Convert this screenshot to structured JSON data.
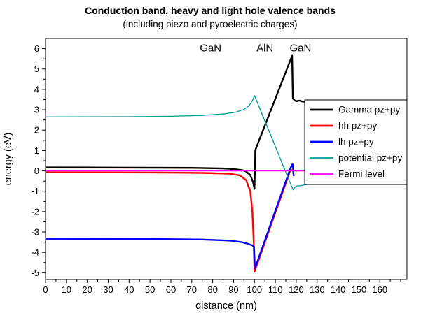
{
  "chart_data": {
    "type": "line",
    "title": "Conduction band, heavy and light hole valence bands",
    "subtitle": "(including piezo and pyroelectric charges)",
    "xlabel": "distance (nm)",
    "ylabel": "energy (eV)",
    "xlim": [
      0,
      173
    ],
    "ylim": [
      -5.33,
      6.5
    ],
    "xticks": [
      0,
      10,
      20,
      30,
      40,
      50,
      60,
      70,
      80,
      90,
      100,
      110,
      120,
      130,
      140,
      150,
      160
    ],
    "yticks": [
      -5,
      -4,
      -3,
      -2,
      -1,
      0,
      1,
      2,
      3,
      4,
      5,
      6
    ],
    "x_minor_step": 5,
    "y_minor_step": 0.5,
    "grid": false,
    "legend_position": "inside-top-right",
    "region_labels": [
      {
        "text": "GaN",
        "x": 79,
        "y": 6.0
      },
      {
        "text": "AlN",
        "x": 105,
        "y": 6.0
      },
      {
        "text": "GaN",
        "x": 122,
        "y": 6.0
      }
    ],
    "series": [
      {
        "name": "Gamma pz+py",
        "color": "#000000",
        "width": 2.4,
        "points": [
          [
            0,
            0.17
          ],
          [
            40,
            0.16
          ],
          [
            70,
            0.15
          ],
          [
            85,
            0.12
          ],
          [
            90,
            0.09
          ],
          [
            94,
            0.04
          ],
          [
            96,
            -0.03
          ],
          [
            98,
            -0.2
          ],
          [
            99.3,
            -0.55
          ],
          [
            100,
            -0.88
          ],
          [
            100.4,
            1.02
          ],
          [
            118,
            5.65
          ],
          [
            118.4,
            3.55
          ],
          [
            119.2,
            3.47
          ],
          [
            120,
            3.42
          ],
          [
            121.5,
            3.45
          ],
          [
            123,
            3.4
          ],
          [
            130,
            3.37
          ],
          [
            168,
            3.33
          ]
        ]
      },
      {
        "name": "hh pz+py",
        "color": "#ff0000",
        "width": 2.4,
        "points": [
          [
            0,
            -0.07
          ],
          [
            50,
            -0.08
          ],
          [
            75,
            -0.1
          ],
          [
            88,
            -0.14
          ],
          [
            93,
            -0.22
          ],
          [
            96,
            -0.45
          ],
          [
            98,
            -1.0
          ],
          [
            99,
            -2.0
          ],
          [
            99.6,
            -3.4
          ],
          [
            100,
            -4.95
          ],
          [
            116,
            -0.31
          ],
          [
            117.3,
            0.08
          ],
          [
            117.9,
            0.02
          ]
        ]
      },
      {
        "name": "lh pz+py",
        "color": "#0000ff",
        "width": 2.4,
        "points": [
          [
            0,
            -3.33
          ],
          [
            50,
            -3.34
          ],
          [
            75,
            -3.37
          ],
          [
            88,
            -3.42
          ],
          [
            94,
            -3.5
          ],
          [
            97,
            -3.58
          ],
          [
            99,
            -3.66
          ],
          [
            99.8,
            -3.72
          ],
          [
            100.2,
            -4.8
          ],
          [
            116,
            -0.22
          ],
          [
            117.4,
            0.18
          ],
          [
            118.2,
            0.33
          ],
          [
            118.8,
            -0.25
          ]
        ]
      },
      {
        "name": "potential pz+py",
        "color": "#009999",
        "width": 1.3,
        "points": [
          [
            0,
            2.65
          ],
          [
            40,
            2.66
          ],
          [
            60,
            2.68
          ],
          [
            75,
            2.72
          ],
          [
            85,
            2.79
          ],
          [
            91,
            2.88
          ],
          [
            95,
            3.02
          ],
          [
            97.5,
            3.2
          ],
          [
            99,
            3.45
          ],
          [
            100,
            3.7
          ],
          [
            118,
            -0.82
          ],
          [
            118.6,
            -0.93
          ],
          [
            119.4,
            -0.8
          ],
          [
            120.5,
            -0.74
          ],
          [
            122,
            -0.72
          ],
          [
            126,
            -0.65
          ],
          [
            134,
            -0.55
          ],
          [
            150,
            -0.45
          ],
          [
            168,
            -0.4
          ]
        ]
      },
      {
        "name": "Fermi level",
        "color": "#ff00ff",
        "width": 1.3,
        "points": [
          [
            0,
            0
          ],
          [
            168,
            0
          ]
        ]
      }
    ]
  }
}
